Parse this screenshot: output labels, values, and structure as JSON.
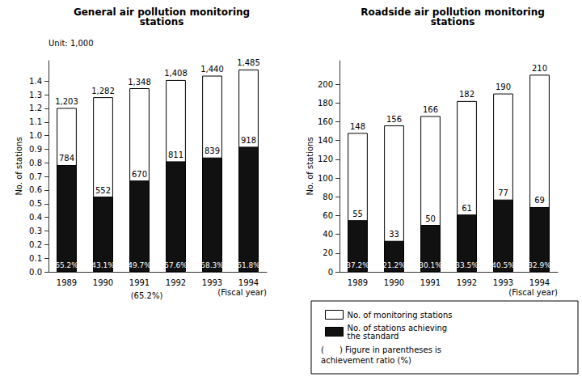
{
  "chart_data": [
    {
      "type": "bar",
      "title": "General air pollution monitoring\nstations",
      "unit": "Unit: 1,000",
      "y_label": "No. of stations",
      "x_label": "(Fiscal year)",
      "note": "(65.2%)",
      "categories": [
        "1989",
        "1990",
        "1991",
        "1992",
        "1993",
        "1994"
      ],
      "series": [
        {
          "name": "No. of monitoring stations",
          "color": "#ffffff",
          "values": [
            1.203,
            1.282,
            1.348,
            1.408,
            1.44,
            1.485
          ],
          "value_labels": [
            "1,203",
            "1,282",
            "1,348",
            "1,408",
            "1,440",
            "1,485"
          ]
        },
        {
          "name": "No. of stations achieving\nthe standard",
          "color": "#111111",
          "values": [
            0.784,
            0.552,
            0.67,
            0.811,
            0.839,
            0.918
          ],
          "value_labels": [
            "784",
            "552",
            "670",
            "811",
            "839",
            "918"
          ],
          "ratio_labels": [
            "(65.2%)",
            "(43.1%)",
            "(49.7%)",
            "(57.6%)",
            "(58.3%)",
            "(61.8%)"
          ]
        }
      ],
      "ylim": [
        0,
        1.55
      ],
      "yticks": [
        {
          "value": 0,
          "label": "0.0"
        },
        0.1,
        0.2,
        0.3,
        0.4,
        0.5,
        0.6,
        0.7,
        0.8,
        0.9,
        {
          "value": 1,
          "label": "1.0"
        },
        1.1,
        1.2,
        1.3,
        1.4
      ],
      "data_labels": true,
      "grid": false
    },
    {
      "type": "bar",
      "title": "Roadside air pollution monitoring\nstations",
      "y_label": "No. of stations",
      "x_label": "(Fiscal year)",
      "categories": [
        "1989",
        "1990",
        "1991",
        "1992",
        "1993",
        "1994"
      ],
      "series": [
        {
          "name": "No. of monitoring stations",
          "color": "#ffffff",
          "values": [
            148,
            156,
            166,
            182,
            190,
            210
          ]
        },
        {
          "name": "No. of stations achieving\nthe standard",
          "color": "#111111",
          "values": [
            55,
            33,
            50,
            61,
            77,
            69
          ],
          "ratio_labels": [
            "(37.2%)",
            "(21.2%)",
            "(30.1%)",
            "(33.5%)",
            "(40.5%)",
            "(32.9%)"
          ]
        }
      ],
      "ylim": [
        0,
        225
      ],
      "yticks": [
        0,
        20,
        40,
        60,
        80,
        100,
        120,
        140,
        160,
        180,
        200
      ],
      "data_labels": true,
      "grid": false,
      "legend": "lower right",
      "legend_note": "(      ) Figure in parentheses is\nachievement ratio (%)"
    }
  ]
}
